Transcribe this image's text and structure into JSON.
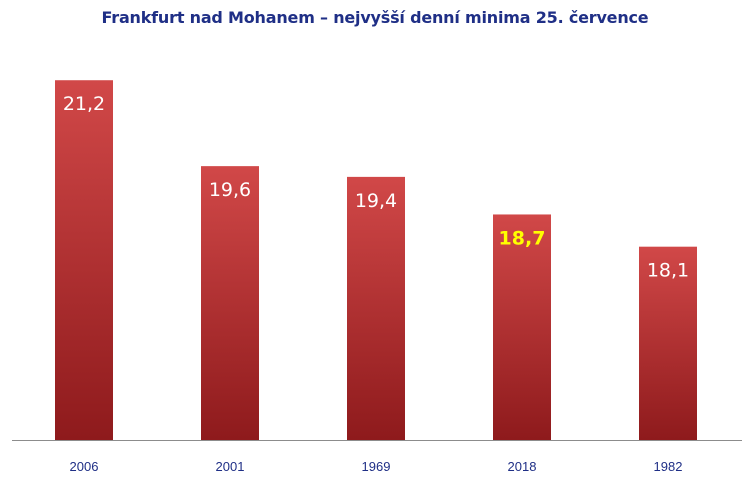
{
  "chart_data": {
    "type": "bar",
    "title": "Frankfurt nad Mohanem – nejvyšší denní minima 25. července",
    "xlabel": "",
    "ylabel": "",
    "categories": [
      "2006",
      "2001",
      "1969",
      "2018",
      "1982"
    ],
    "values": [
      21.2,
      19.6,
      19.4,
      18.7,
      18.1
    ],
    "data_labels": [
      "21,2",
      "19,6",
      "19,4",
      "18,7",
      "18,1"
    ],
    "highlight_category": "2018",
    "ylim": [
      14.5,
      21.8
    ],
    "grid": false,
    "legend": "none",
    "colors": {
      "bar_top": "#d14848",
      "bar_bottom": "#8e1a1c",
      "label": "#ffffff",
      "highlight_label": "#ffff00",
      "axis": "#8c8c8c",
      "tick_label": "#1f2f86",
      "title": "#1f2f86"
    }
  }
}
